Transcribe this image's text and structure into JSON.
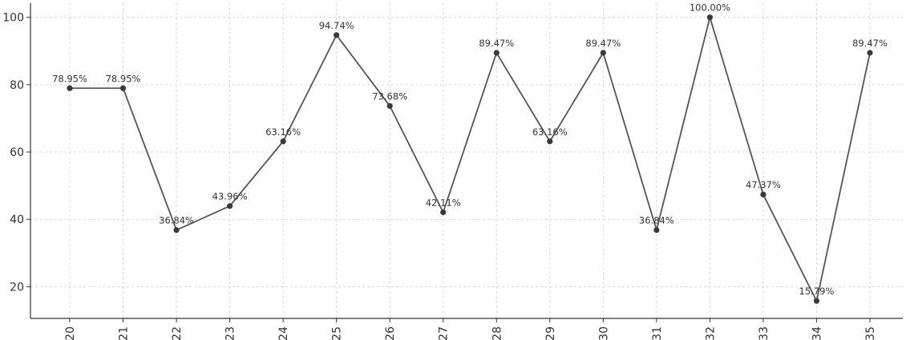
{
  "chart_data": {
    "type": "line",
    "title": "",
    "xlabel": "",
    "ylabel": "",
    "x": [
      "20",
      "21",
      "22",
      "23",
      "24",
      "25",
      "26",
      "27",
      "28",
      "29",
      "30",
      "31",
      "32",
      "33",
      "34",
      "35"
    ],
    "series": [
      {
        "values": [
          78.95,
          78.95,
          36.84,
          43.96,
          63.16,
          94.74,
          73.68,
          42.11,
          89.47,
          63.16,
          89.47,
          36.84,
          100.0,
          47.37,
          15.79,
          89.47
        ],
        "labels": [
          "78.95%",
          "78.95%",
          "36.84%",
          "43.96%",
          "63.16%",
          "94.74%",
          "73.68%",
          "42.11%",
          "89.47%",
          "63.16%",
          "89.47%",
          "36.84%",
          "100.00%",
          "47.37%",
          "15.79%",
          "89.47%"
        ],
        "color": "#555555"
      }
    ],
    "yticks": [
      "20",
      "40",
      "60",
      "80",
      "100"
    ],
    "ylim": [
      10.6,
      104.2
    ],
    "grid": true
  }
}
